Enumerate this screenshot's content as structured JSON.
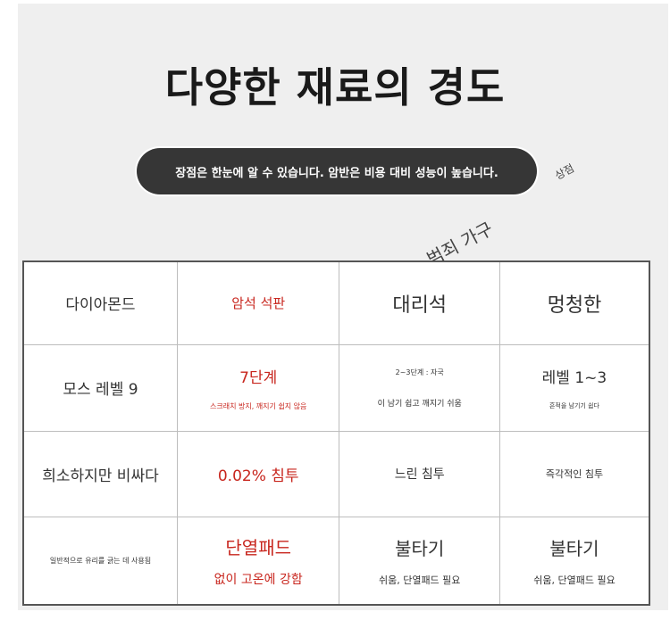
{
  "title": "다양한 재료의 경도",
  "subtitle": "장점은 한눈에 알 수 있습니다. 암반은 비용 대비 성능이 높습니다.",
  "watermark": {
    "main": "범죄 가구",
    "small": "상점"
  },
  "colors": {
    "accent": "#c8261e",
    "pill": "#363636",
    "background": "#efefef"
  },
  "table": {
    "rows": [
      {
        "c1": "다이아몬드",
        "c2": "암석 석판",
        "c3": "대리석",
        "c4": "멍청한"
      },
      {
        "c1": "모스 레벨 9",
        "c2a": "7단계",
        "c2b": "스크래치 방지, 깨지기 쉽지 않음",
        "c3a": "2~3단계 : 자국",
        "c3b": "이 남기 쉽고 깨지기 쉬움",
        "c4a": "레벨 1~3",
        "c4b": "흔적을 남기기 쉽다"
      },
      {
        "c1": "희소하지만 비싸다",
        "c2": "0.02% 침투",
        "c3": "느린 침투",
        "c4": "즉각적인 침투"
      },
      {
        "c1": "일반적으로 유리를 긁는 데 사용됨",
        "c2a": "단열패드",
        "c2b": "없이 고온에 강함",
        "c3a": "불타기",
        "c3b": "쉬움, 단열패드 필요",
        "c4a": "불타기",
        "c4b": "쉬움, 단열패드 필요"
      }
    ]
  }
}
